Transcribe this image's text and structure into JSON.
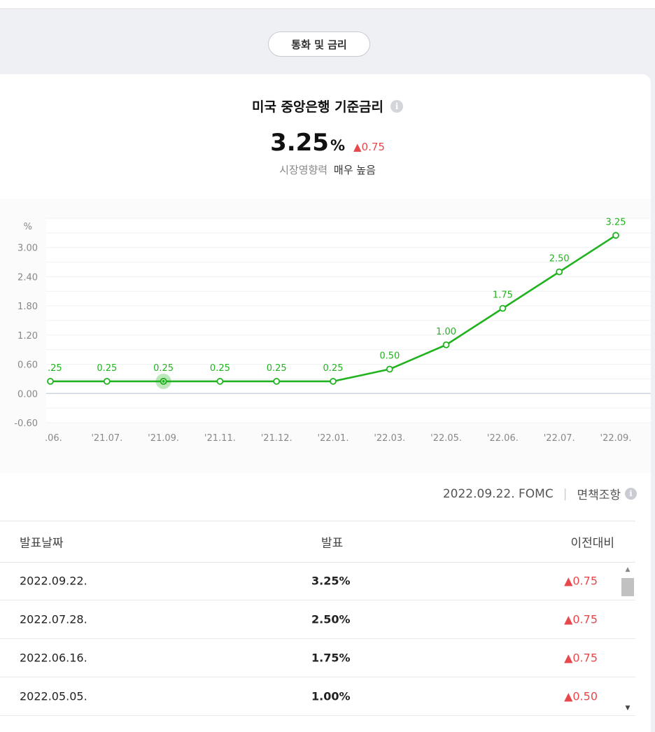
{
  "category_pill": "통화 및 금리",
  "header": {
    "title": "미국 중앙은행 기준금리",
    "value": "3.25",
    "unit": "%",
    "change": "▲0.75",
    "impact_label": "시장영향력",
    "impact_value": "매우 높음"
  },
  "chart_data": {
    "type": "line",
    "ylabel": "%",
    "ylim": [
      -0.6,
      3.6
    ],
    "yticks": [
      "3.00",
      "2.40",
      "1.80",
      "1.20",
      "0.60",
      "0.00",
      "-0.60"
    ],
    "ytick_values": [
      3.0,
      2.4,
      1.8,
      1.2,
      0.6,
      0.0,
      -0.6
    ],
    "categories": [
      ".06.",
      "'21.07.",
      "'21.09.",
      "'21.11.",
      "'21.12.",
      "'22.01.",
      "'22.03.",
      "'22.05.",
      "'22.06.",
      "'22.07.",
      "'22.09."
    ],
    "values": [
      0.25,
      0.25,
      0.25,
      0.25,
      0.25,
      0.25,
      0.5,
      1.0,
      1.75,
      2.5,
      3.25
    ],
    "data_labels": [
      ".25",
      "0.25",
      "0.25",
      "0.25",
      "0.25",
      "0.25",
      "0.50",
      "1.00",
      "1.75",
      "2.50",
      "3.25"
    ],
    "highlight_index": 2,
    "line_color": "#21b31f",
    "grid": true
  },
  "meta": {
    "date_source": "2022.09.22. FOMC",
    "separator": "|",
    "disclaimer": "면책조항"
  },
  "table": {
    "headers": {
      "date": "발표날짜",
      "value": "발표",
      "change": "이전대비"
    },
    "rows": [
      {
        "date": "2022.09.22.",
        "value": "3.25%",
        "change": "▲0.75"
      },
      {
        "date": "2022.07.28.",
        "value": "2.50%",
        "change": "▲0.75"
      },
      {
        "date": "2022.06.16.",
        "value": "1.75%",
        "change": "▲0.75"
      },
      {
        "date": "2022.05.05.",
        "value": "1.00%",
        "change": "▲0.50"
      }
    ]
  },
  "colors": {
    "accent_green": "#21b31f",
    "up_red": "#e8484c"
  }
}
